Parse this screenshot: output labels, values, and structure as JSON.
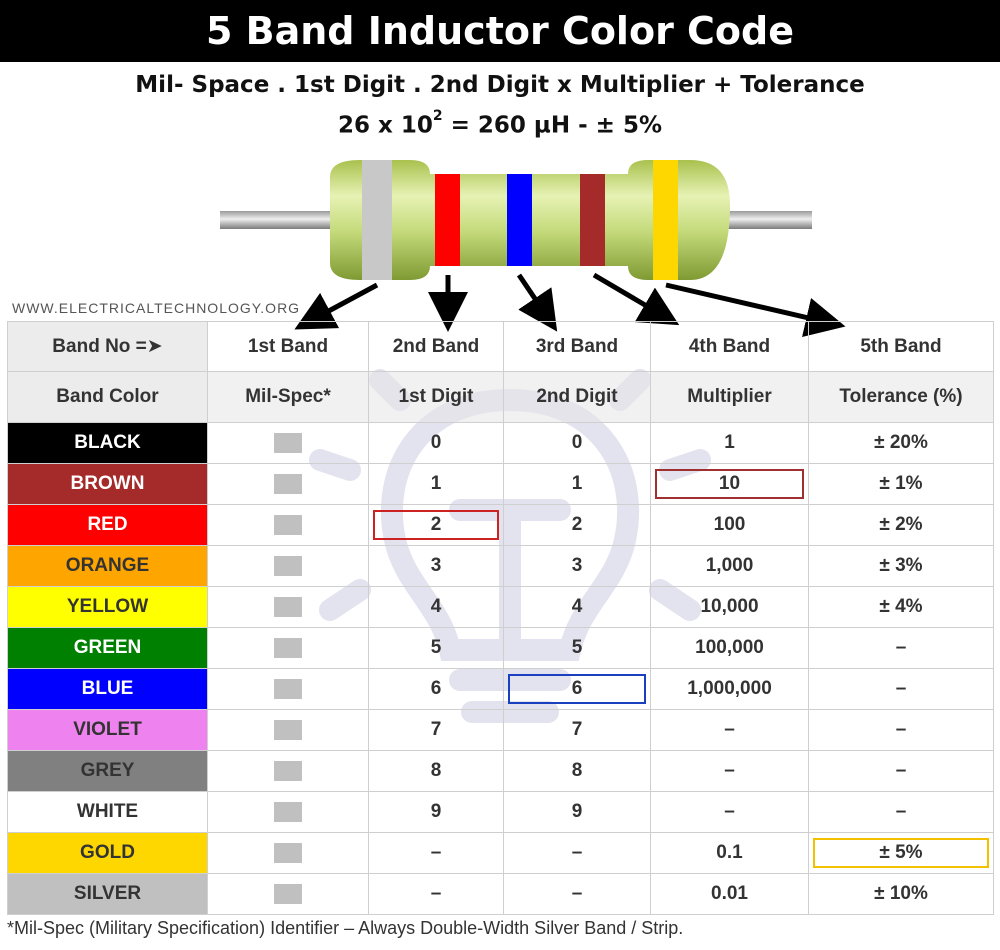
{
  "title": "5 Band Inductor Color Code",
  "formula": {
    "line1": "Mil- Space . 1st Digit . 2nd Digit x Multiplier + Tolerance",
    "line2_base": "26 x 10",
    "line2_exp": "2",
    "line2_rest": " = 260 µH - ± 5%"
  },
  "watermark": "WWW.ELECTRICALTECHNOLOGY.ORG",
  "inductor_bands": {
    "band1": "#c8c8c8",
    "band2": "#ff0000",
    "band3": "#0000ff",
    "band4": "#a52a2a",
    "band5": "#ffd700"
  },
  "table": {
    "header1": [
      "Band No =➤",
      "1st Band",
      "2nd Band",
      "3rd Band",
      "4th Band",
      "5th Band"
    ],
    "header2": [
      "Band Color",
      "Mil-Spec*",
      "1st Digit",
      "2nd Digit",
      "Multiplier",
      "Tolerance (%)"
    ],
    "rows": [
      {
        "name": "BLACK",
        "bg": "#000000",
        "fg": "#ffffff",
        "d1": "0",
        "d2": "0",
        "mult": "1",
        "tol": "± 20%"
      },
      {
        "name": "BROWN",
        "bg": "#a52a2a",
        "fg": "#ffffff",
        "d1": "1",
        "d2": "1",
        "mult": "10",
        "tol": "± 1%"
      },
      {
        "name": "RED",
        "bg": "#ff0000",
        "fg": "#ffffff",
        "d1": "2",
        "d2": "2",
        "mult": "100",
        "tol": "± 2%"
      },
      {
        "name": "ORANGE",
        "bg": "#ffa500",
        "fg": "#333333",
        "d1": "3",
        "d2": "3",
        "mult": "1,000",
        "tol": "± 3%"
      },
      {
        "name": "YELLOW",
        "bg": "#ffff00",
        "fg": "#333333",
        "d1": "4",
        "d2": "4",
        "mult": "10,000",
        "tol": "± 4%"
      },
      {
        "name": "GREEN",
        "bg": "#008000",
        "fg": "#ffffff",
        "d1": "5",
        "d2": "5",
        "mult": "100,000",
        "tol": "–"
      },
      {
        "name": "BLUE",
        "bg": "#0000ff",
        "fg": "#ffffff",
        "d1": "6",
        "d2": "6",
        "mult": "1,000,000",
        "tol": "–"
      },
      {
        "name": "VIOLET",
        "bg": "#ee82ee",
        "fg": "#333333",
        "d1": "7",
        "d2": "7",
        "mult": "–",
        "tol": "–"
      },
      {
        "name": "GREY",
        "bg": "#808080",
        "fg": "#333333",
        "d1": "8",
        "d2": "8",
        "mult": "–",
        "tol": "–"
      },
      {
        "name": "WHITE",
        "bg": "#ffffff",
        "fg": "#333333",
        "d1": "9",
        "d2": "9",
        "mult": "–",
        "tol": "–"
      },
      {
        "name": "GOLD",
        "bg": "#ffd700",
        "fg": "#333333",
        "d1": "–",
        "d2": "–",
        "mult": "0.1",
        "tol": "± 5%"
      },
      {
        "name": "SILVER",
        "bg": "#c0c0c0",
        "fg": "#333333",
        "d1": "–",
        "d2": "–",
        "mult": "0.01",
        "tol": "± 10%"
      }
    ],
    "highlights": {
      "d1_row": 2,
      "d1_color": "#cc2222",
      "d2_row": 6,
      "d2_color": "#1a3fbf",
      "mult_row": 1,
      "mult_color": "#a03030",
      "tol_row": 10,
      "tol_color": "#f2c200"
    }
  },
  "footnote": "*Mil-Spec (Military Specification) Identifier – Always Double-Width Silver Band / Strip."
}
